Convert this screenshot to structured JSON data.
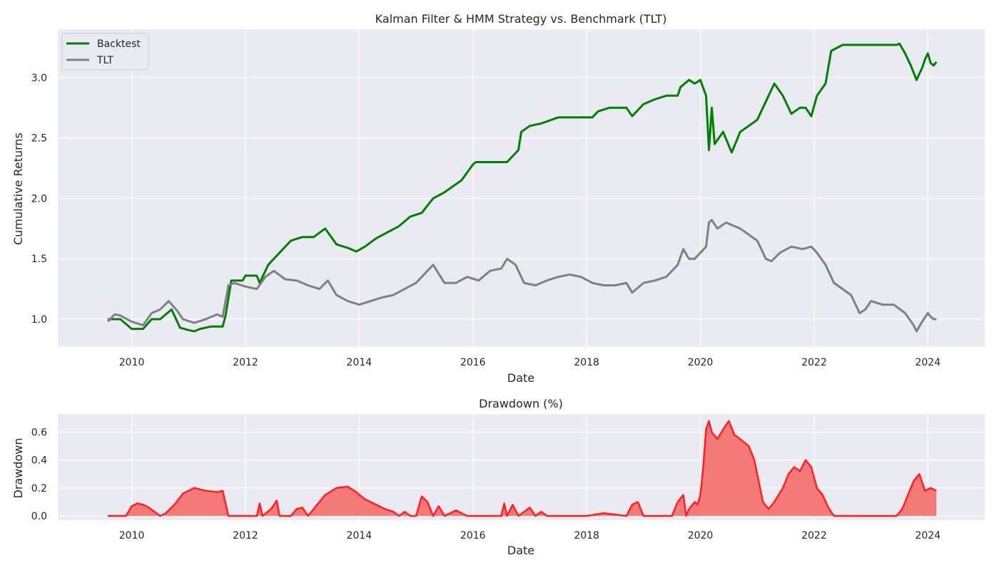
{
  "chart_data": [
    {
      "type": "line",
      "title": "Kalman Filter & HMM Strategy vs. Benchmark (TLT)",
      "xlabel": "Date",
      "ylabel": "Cumulative Returns",
      "xlim": [
        2008.7,
        2025.0
      ],
      "ylim": [
        0.77,
        3.4
      ],
      "x_ticks": [
        "2010",
        "2012",
        "2014",
        "2016",
        "2018",
        "2020",
        "2022",
        "2024"
      ],
      "y_ticks": [
        "1.0",
        "1.5",
        "2.0",
        "2.5",
        "3.0"
      ],
      "grid": true,
      "legend_position": "top-left",
      "series": [
        {
          "name": "Backtest",
          "color": "#008000",
          "x": [
            2009.58,
            2009.8,
            2010.0,
            2010.2,
            2010.35,
            2010.5,
            2010.7,
            2010.85,
            2011.0,
            2011.1,
            2011.2,
            2011.4,
            2011.6,
            2011.65,
            2011.75,
            2011.95,
            2012.0,
            2012.2,
            2012.25,
            2012.4,
            2012.5,
            2012.6,
            2012.8,
            2013.0,
            2013.2,
            2013.4,
            2013.6,
            2013.8,
            2013.95,
            2014.1,
            2014.3,
            2014.5,
            2014.7,
            2014.9,
            2015.1,
            2015.3,
            2015.5,
            2015.8,
            2016.0,
            2016.05,
            2016.5,
            2016.6,
            2016.8,
            2016.85,
            2017.0,
            2017.2,
            2017.5,
            2017.8,
            2018.1,
            2018.2,
            2018.4,
            2018.7,
            2018.8,
            2019.0,
            2019.2,
            2019.4,
            2019.6,
            2019.65,
            2019.8,
            2019.9,
            2020.0,
            2020.1,
            2020.15,
            2020.2,
            2020.25,
            2020.4,
            2020.55,
            2020.7,
            2020.85,
            2021.0,
            2021.15,
            2021.3,
            2021.45,
            2021.6,
            2021.75,
            2021.85,
            2021.95,
            2022.05,
            2022.2,
            2022.3,
            2022.5,
            2023.0,
            2023.45,
            2023.5,
            2023.6,
            2023.7,
            2023.8,
            2023.9,
            2023.95,
            2024.0,
            2024.05,
            2024.1,
            2024.15
          ],
          "y": [
            1.0,
            1.0,
            0.92,
            0.92,
            1.0,
            1.0,
            1.08,
            0.93,
            0.91,
            0.9,
            0.92,
            0.94,
            0.94,
            1.03,
            1.32,
            1.32,
            1.36,
            1.36,
            1.3,
            1.45,
            1.5,
            1.55,
            1.65,
            1.68,
            1.68,
            1.75,
            1.62,
            1.59,
            1.56,
            1.6,
            1.67,
            1.72,
            1.77,
            1.85,
            1.88,
            2.0,
            2.05,
            2.15,
            2.28,
            2.3,
            2.3,
            2.3,
            2.4,
            2.55,
            2.6,
            2.62,
            2.67,
            2.67,
            2.67,
            2.72,
            2.75,
            2.75,
            2.68,
            2.78,
            2.82,
            2.85,
            2.85,
            2.92,
            2.98,
            2.95,
            2.98,
            2.85,
            2.4,
            2.75,
            2.45,
            2.55,
            2.38,
            2.55,
            2.6,
            2.65,
            2.8,
            2.95,
            2.85,
            2.7,
            2.75,
            2.75,
            2.68,
            2.85,
            2.95,
            3.22,
            3.27,
            3.27,
            3.27,
            3.28,
            3.2,
            3.1,
            2.98,
            3.08,
            3.15,
            3.2,
            3.12,
            3.1,
            3.13
          ]
        },
        {
          "name": "TLT",
          "color": "#808080",
          "x": [
            2009.58,
            2009.7,
            2009.8,
            2010.0,
            2010.2,
            2010.35,
            2010.5,
            2010.65,
            2010.8,
            2010.9,
            2011.1,
            2011.3,
            2011.5,
            2011.6,
            2011.7,
            2011.8,
            2012.0,
            2012.2,
            2012.35,
            2012.5,
            2012.7,
            2012.9,
            2013.1,
            2013.3,
            2013.45,
            2013.6,
            2013.8,
            2014.0,
            2014.2,
            2014.4,
            2014.6,
            2014.8,
            2015.0,
            2015.1,
            2015.3,
            2015.5,
            2015.7,
            2015.9,
            2016.1,
            2016.3,
            2016.5,
            2016.6,
            2016.75,
            2016.9,
            2017.1,
            2017.3,
            2017.5,
            2017.7,
            2017.9,
            2018.1,
            2018.3,
            2018.5,
            2018.7,
            2018.8,
            2019.0,
            2019.2,
            2019.4,
            2019.6,
            2019.7,
            2019.8,
            2019.9,
            2020.0,
            2020.1,
            2020.15,
            2020.2,
            2020.3,
            2020.45,
            2020.6,
            2020.7,
            2020.85,
            2021.0,
            2021.15,
            2021.25,
            2021.4,
            2021.6,
            2021.8,
            2021.95,
            2022.05,
            2022.2,
            2022.35,
            2022.5,
            2022.65,
            2022.8,
            2022.9,
            2023.0,
            2023.2,
            2023.4,
            2023.6,
            2023.75,
            2023.8,
            2023.9,
            2024.0,
            2024.05,
            2024.1,
            2024.15
          ],
          "y": [
            0.98,
            1.04,
            1.03,
            0.98,
            0.95,
            1.05,
            1.08,
            1.15,
            1.07,
            1.0,
            0.97,
            1.0,
            1.04,
            1.02,
            1.28,
            1.3,
            1.27,
            1.25,
            1.35,
            1.4,
            1.33,
            1.32,
            1.28,
            1.25,
            1.32,
            1.2,
            1.15,
            1.12,
            1.15,
            1.18,
            1.2,
            1.25,
            1.3,
            1.35,
            1.45,
            1.3,
            1.3,
            1.35,
            1.32,
            1.4,
            1.42,
            1.5,
            1.45,
            1.3,
            1.28,
            1.32,
            1.35,
            1.37,
            1.35,
            1.3,
            1.28,
            1.28,
            1.3,
            1.22,
            1.3,
            1.32,
            1.35,
            1.45,
            1.58,
            1.5,
            1.5,
            1.55,
            1.6,
            1.8,
            1.82,
            1.75,
            1.8,
            1.77,
            1.75,
            1.7,
            1.65,
            1.5,
            1.48,
            1.55,
            1.6,
            1.58,
            1.6,
            1.55,
            1.45,
            1.3,
            1.25,
            1.2,
            1.05,
            1.08,
            1.15,
            1.12,
            1.12,
            1.05,
            0.95,
            0.9,
            0.98,
            1.05,
            1.02,
            1.0,
            1.0
          ]
        }
      ]
    },
    {
      "type": "area",
      "title": "Drawdown (%)",
      "xlabel": "Date",
      "ylabel": "Drawdown",
      "xlim": [
        2008.7,
        2025.0
      ],
      "ylim": [
        -0.03,
        0.73
      ],
      "x_ticks": [
        "2010",
        "2012",
        "2014",
        "2016",
        "2018",
        "2020",
        "2022",
        "2024"
      ],
      "y_ticks": [
        "0.0",
        "0.2",
        "0.4",
        "0.6"
      ],
      "grid": true,
      "series": [
        {
          "color": "#ff2020",
          "fill_color": "#f47a7a",
          "x": [
            2009.58,
            2009.9,
            2010.0,
            2010.1,
            2010.2,
            2010.3,
            2010.4,
            2010.5,
            2010.6,
            2010.75,
            2010.9,
            2011.1,
            2011.3,
            2011.5,
            2011.6,
            2011.7,
            2012.0,
            2012.2,
            2012.25,
            2012.3,
            2012.45,
            2012.55,
            2012.6,
            2012.8,
            2012.9,
            2013.0,
            2013.1,
            2013.2,
            2013.4,
            2013.6,
            2013.8,
            2013.95,
            2014.1,
            2014.3,
            2014.45,
            2014.6,
            2014.7,
            2014.8,
            2014.9,
            2015.0,
            2015.1,
            2015.2,
            2015.3,
            2015.4,
            2015.5,
            2015.7,
            2015.9,
            2016.5,
            2016.55,
            2016.6,
            2016.7,
            2016.8,
            2017.0,
            2017.1,
            2017.2,
            2017.3,
            2018.0,
            2018.3,
            2018.7,
            2018.8,
            2018.9,
            2019.0,
            2019.5,
            2019.6,
            2019.7,
            2019.75,
            2019.8,
            2019.9,
            2019.95,
            2020.0,
            2020.05,
            2020.1,
            2020.15,
            2020.2,
            2020.3,
            2020.4,
            2020.5,
            2020.6,
            2020.7,
            2020.85,
            2020.95,
            2021.05,
            2021.1,
            2021.2,
            2021.3,
            2021.45,
            2021.55,
            2021.65,
            2021.75,
            2021.85,
            2021.95,
            2022.05,
            2022.15,
            2022.25,
            2022.35,
            2023.45,
            2023.55,
            2023.65,
            2023.75,
            2023.85,
            2023.95,
            2024.05,
            2024.15
          ],
          "y": [
            0.0,
            0.0,
            0.07,
            0.09,
            0.08,
            0.06,
            0.03,
            0.0,
            0.02,
            0.08,
            0.16,
            0.2,
            0.18,
            0.17,
            0.18,
            0.0,
            0.0,
            0.0,
            0.09,
            0.0,
            0.05,
            0.11,
            0.0,
            0.0,
            0.05,
            0.06,
            0.0,
            0.05,
            0.15,
            0.2,
            0.21,
            0.17,
            0.12,
            0.08,
            0.05,
            0.03,
            0.0,
            0.03,
            0.0,
            0.0,
            0.14,
            0.1,
            0.0,
            0.07,
            0.0,
            0.04,
            0.0,
            0.0,
            0.09,
            0.0,
            0.08,
            0.0,
            0.06,
            0.0,
            0.03,
            0.0,
            0.0,
            0.02,
            0.0,
            0.08,
            0.1,
            0.0,
            0.0,
            0.1,
            0.15,
            0.0,
            0.05,
            0.1,
            0.08,
            0.15,
            0.35,
            0.62,
            0.68,
            0.6,
            0.55,
            0.62,
            0.68,
            0.58,
            0.55,
            0.5,
            0.4,
            0.2,
            0.1,
            0.05,
            0.1,
            0.2,
            0.3,
            0.35,
            0.32,
            0.4,
            0.35,
            0.2,
            0.15,
            0.06,
            0.0,
            0.0,
            0.05,
            0.15,
            0.25,
            0.3,
            0.18,
            0.2,
            0.18
          ]
        }
      ]
    }
  ]
}
